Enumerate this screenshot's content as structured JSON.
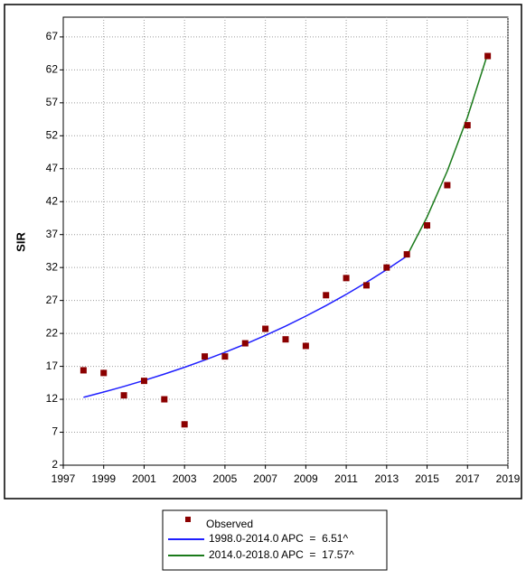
{
  "chart_data": {
    "type": "scatter",
    "ylabel": "SIR",
    "x": [
      1998,
      1999,
      2000,
      2001,
      2002,
      2003,
      2004,
      2005,
      2006,
      2007,
      2008,
      2009,
      2010,
      2011,
      2012,
      2013,
      2014,
      2015,
      2016,
      2017,
      2018
    ],
    "series": [
      {
        "name": "Observed",
        "type": "scatter",
        "color": "#8b0000",
        "values": [
          16.4,
          16.0,
          12.6,
          14.8,
          12.0,
          8.2,
          18.5,
          18.5,
          20.5,
          22.7,
          21.1,
          20.1,
          27.8,
          30.4,
          29.3,
          32.0,
          34.0,
          38.4,
          44.5,
          53.6,
          64.1
        ]
      },
      {
        "name": "1998.0-2014.0 APC  =  6.51^",
        "type": "line",
        "color": "#1f1fff",
        "values": [
          12.3,
          13.1,
          13.95,
          14.86,
          15.83,
          16.86,
          17.96,
          19.13,
          20.37,
          21.7,
          23.11,
          24.62,
          26.22,
          27.93,
          29.74,
          31.68,
          33.74,
          null,
          null,
          null,
          null
        ]
      },
      {
        "name": "2014.0-2018.0 APC  =  17.57^",
        "type": "line",
        "color": "#1a7a1a",
        "values": [
          null,
          null,
          null,
          null,
          null,
          null,
          null,
          null,
          null,
          null,
          null,
          null,
          null,
          null,
          null,
          null,
          33.74,
          39.67,
          46.64,
          54.83,
          64.47
        ]
      }
    ],
    "xlim": [
      1997,
      2019
    ],
    "xticks": [
      1997,
      1999,
      2001,
      2003,
      2005,
      2007,
      2009,
      2011,
      2013,
      2015,
      2017,
      2019
    ],
    "ylim": [
      2,
      70
    ],
    "yticks": [
      2,
      7,
      12,
      17,
      22,
      27,
      32,
      37,
      42,
      47,
      52,
      57,
      62,
      67
    ],
    "grid": true
  }
}
